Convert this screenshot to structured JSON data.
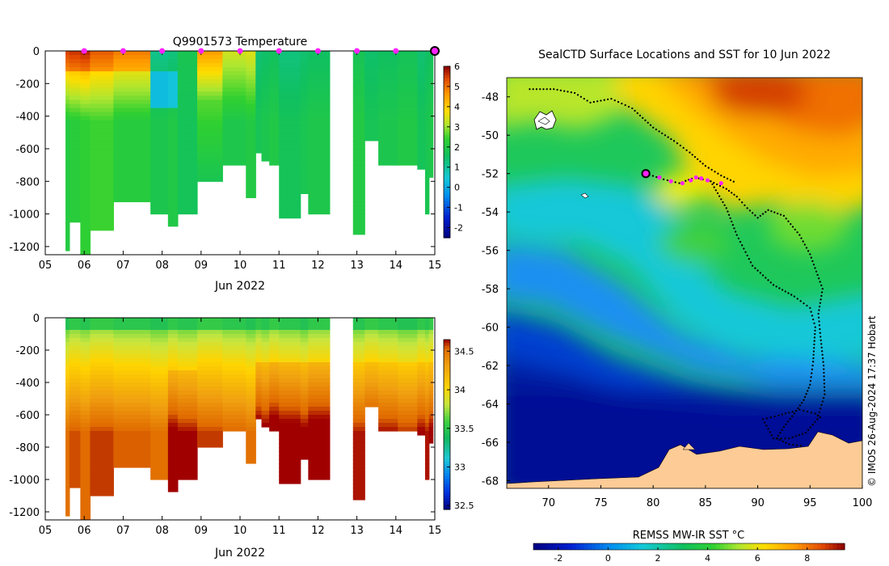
{
  "chart_data": [
    {
      "type": "heatmap",
      "panel": "temperature-profile",
      "title": "Q9901573  Temperature",
      "xlabel": "Jun 2022",
      "ylabel": "",
      "x_ticks": [
        "05",
        "06",
        "07",
        "08",
        "09",
        "10",
        "11",
        "12",
        "13",
        "14",
        "15"
      ],
      "y_ticks": [
        "0",
        "-200",
        "-400",
        "-600",
        "-800",
        "-1000",
        "-1200"
      ],
      "xlim": [
        5,
        15
      ],
      "ylim": [
        -1250,
        0
      ],
      "colorbar": {
        "min": -2.5,
        "max": 6,
        "ticks": [
          "-2",
          "-1",
          "0",
          "1",
          "2",
          "3",
          "4",
          "5",
          "6"
        ]
      },
      "markers_day": [
        6,
        7,
        8,
        9,
        10,
        11,
        12,
        13,
        14
      ],
      "current_marker_day": 15
    },
    {
      "type": "heatmap",
      "panel": "salinity-profile",
      "title": "",
      "xlabel": "Jun 2022",
      "x_ticks": [
        "05",
        "06",
        "07",
        "08",
        "09",
        "10",
        "11",
        "12",
        "13",
        "14",
        "15"
      ],
      "y_ticks": [
        "0",
        "-200",
        "-400",
        "-600",
        "-800",
        "-1000",
        "-1200"
      ],
      "xlim": [
        5,
        15
      ],
      "ylim": [
        -1250,
        0
      ],
      "colorbar": {
        "min": 32.45,
        "max": 34.65,
        "ticks": [
          "32.5",
          "33",
          "33.5",
          "34",
          "34.5"
        ]
      }
    },
    {
      "type": "heatmap",
      "panel": "sst-map",
      "title": "SealCTD Surface Locations and SST for 10 Jun 2022",
      "x_ticks": [
        "70",
        "75",
        "80",
        "85",
        "90",
        "95",
        "100"
      ],
      "y_ticks": [
        "-48",
        "-50",
        "-52",
        "-54",
        "-56",
        "-58",
        "-60",
        "-62",
        "-64",
        "-66",
        "-68"
      ],
      "xlim": [
        66,
        100
      ],
      "ylim": [
        -68.4,
        -47
      ],
      "current_position": {
        "lon": 79.3,
        "lat": -52
      },
      "colorbar": {
        "label": "REMSS MW-IR SST °C",
        "min": -3,
        "max": 9.5,
        "ticks": [
          "-2",
          "0",
          "2",
          "4",
          "6",
          "8"
        ]
      }
    }
  ],
  "credit": "© IMOS 26-Aug-2024 17:37 Hobart",
  "colors": {
    "marker": "#ff22ff",
    "land": "#fccb96",
    "track": "#000000"
  }
}
